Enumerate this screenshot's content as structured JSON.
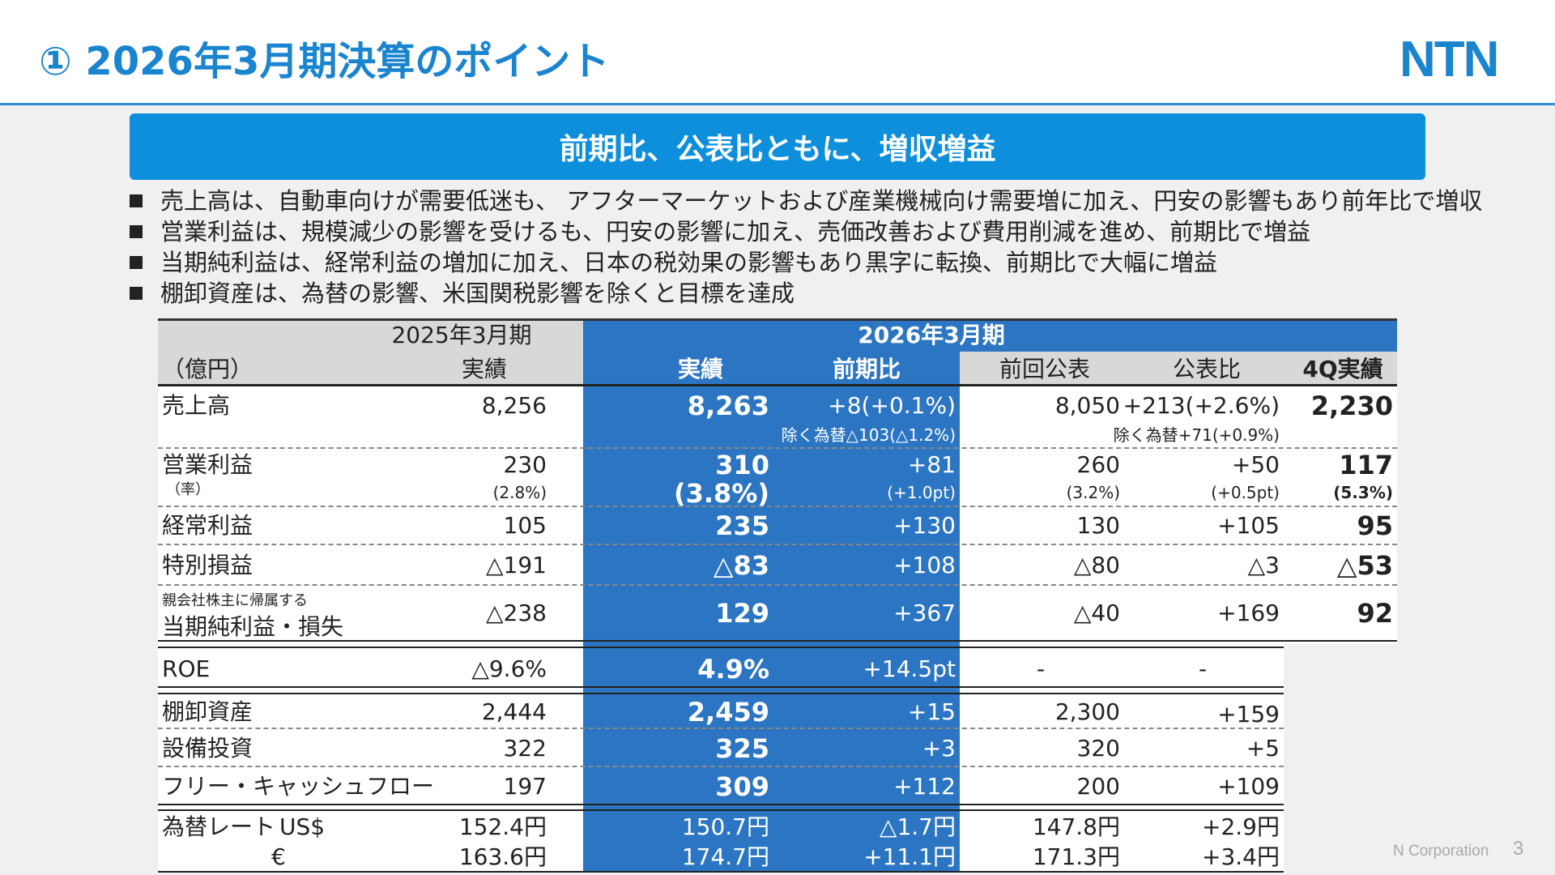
{
  "header": {
    "title": "① 2026年3月期決算のポイント",
    "logo": "NTN"
  },
  "banner": "前期比、公表比ともに、増収増益",
  "bullets": [
    "売上高は、自動車向けが需要低迷も、 アフターマーケットおよび産業機械向け需要増に加え、円安の影響もあり前年比で増収",
    "営業利益は、規模減少の影響を受けるも、円安の影響に加え、売価改善および費用削減を進め、前期比で増益",
    "当期純利益は、経常利益の増加に加え、日本の税効果の影響もあり黒字に転換、前期比で大幅に増益",
    "棚卸資産は、為替の影響、米国関税影響を除くと目標を達成"
  ],
  "table": {
    "headers": {
      "fy2025": "2025年3月期",
      "fy2026": "2026年3月期",
      "unit": "（億円）",
      "actual_2025": "実績",
      "actual_2026": "実績",
      "yoy": "前期比",
      "prev_forecast": "前回公表",
      "vs_forecast": "公表比",
      "q4_actual": "4Q実績"
    },
    "rows": {
      "sales": {
        "label": "売上高",
        "v2025": "8,256",
        "v2026": "8,263",
        "yoy": "+8(+0.1%)",
        "yoy_note": "除く為替△103(△1.2%)",
        "forecast": "8,050",
        "vs": "+213(+2.6%)",
        "vs_note": "除く為替+71(+0.9%)",
        "q4": "2,230"
      },
      "op": {
        "label": "営業利益",
        "rate_label": "（率）",
        "v2025": "230",
        "v2025_rate": "(2.8%)",
        "v2026": "310",
        "v2026_rate": "(3.8%)",
        "yoy": "+81",
        "yoy_rate": "(+1.0pt)",
        "forecast": "260",
        "forecast_rate": "(3.2%)",
        "vs": "+50",
        "vs_rate": "(+0.5pt)",
        "q4": "117",
        "q4_rate": "(5.3%)"
      },
      "ordinary": {
        "label": "経常利益",
        "v2025": "105",
        "v2026": "235",
        "yoy": "+130",
        "forecast": "130",
        "vs": "+105",
        "q4": "95"
      },
      "special": {
        "label": "特別損益",
        "v2025": "△191",
        "v2026": "△83",
        "yoy": "+108",
        "forecast": "△80",
        "vs": "△3",
        "q4": "△53"
      },
      "net": {
        "label_small": "親会社株主に帰属する",
        "label": "当期純利益・損失",
        "v2025": "△238",
        "v2026": "129",
        "yoy": "+367",
        "forecast": "△40",
        "vs": "+169",
        "q4": "92"
      },
      "roe": {
        "label": "ROE",
        "v2025": "△9.6%",
        "v2026": "4.9%",
        "yoy": "+14.5pt",
        "forecast": "-",
        "vs": "-"
      },
      "inventory": {
        "label": "棚卸資産",
        "v2025": "2,444",
        "v2026": "2,459",
        "yoy": "+15",
        "forecast": "2,300",
        "vs": "+159"
      },
      "capex": {
        "label": "設備投資",
        "v2025": "322",
        "v2026": "325",
        "yoy": "+3",
        "forecast": "320",
        "vs": "+5"
      },
      "fcf": {
        "label": "フリー・キャッシュフロー",
        "v2025": "197",
        "v2026": "309",
        "yoy": "+112",
        "forecast": "200",
        "vs": "+109"
      },
      "fx_usd": {
        "label": "為替レート",
        "currency": "US$",
        "v2025": "152.4円",
        "v2026": "150.7円",
        "yoy": "△1.7円",
        "forecast": "147.8円",
        "vs": "+2.9円"
      },
      "fx_eur": {
        "currency": "€",
        "v2025": "163.6円",
        "v2026": "174.7円",
        "yoy": "+11.1円",
        "forecast": "171.3円",
        "vs": "+3.4円"
      }
    }
  },
  "footer": {
    "company": "N Corporation",
    "page": "3"
  },
  "colors": {
    "accent": "#1a84cf",
    "banner": "#0d8fdc",
    "table_highlight": "#2b75c2",
    "header_gray": "#d8d8d8"
  }
}
